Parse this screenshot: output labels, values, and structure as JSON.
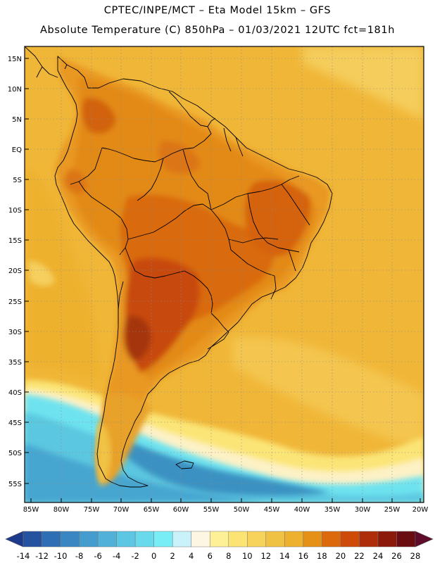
{
  "header": {
    "line1": "CPTEC/INPE/MCT –  Eta Model 15km – GFS",
    "line2": "Absolute Temperature (C) 850hPa – 01/03/2021 12UTC fct=181h"
  },
  "map": {
    "lat_labels": [
      "15N",
      "10N",
      "5N",
      "EQ",
      "5S",
      "10S",
      "15S",
      "20S",
      "25S",
      "30S",
      "35S",
      "40S",
      "45S",
      "50S",
      "55S"
    ],
    "lon_labels": [
      "85W",
      "80W",
      "75W",
      "70W",
      "65W",
      "60W",
      "55W",
      "50W",
      "45W",
      "40W",
      "35W",
      "30W",
      "25W",
      "20W"
    ],
    "lat_range": [
      -58,
      17
    ],
    "lon_range": [
      -86,
      -20
    ],
    "grid": "dotted"
  },
  "colorbar": {
    "labels": [
      "-14",
      "-12",
      "-10",
      "-8",
      "-6",
      "-4",
      "-2",
      "0",
      "2",
      "4",
      "6",
      "8",
      "10",
      "12",
      "14",
      "16",
      "18",
      "20",
      "22",
      "24",
      "26",
      "28"
    ],
    "colors": [
      "#1d3b8a",
      "#2553a0",
      "#2e6eb5",
      "#3a86c2",
      "#459cce",
      "#51b1d9",
      "#5cc6e3",
      "#6ad9ec",
      "#78edf5",
      "#caf2fb",
      "#fdf6e2",
      "#fdf097",
      "#fbe374",
      "#f7d35c",
      "#f0c244",
      "#edb12e",
      "#e59017",
      "#dc6a0c",
      "#cd4a08",
      "#ad2e08",
      "#8c1a0b",
      "#6a0d10",
      "#5e0c2a"
    ]
  },
  "colors": {
    "ocean_warm": "#f0b637",
    "land_hot": "#e38a18",
    "land_core": "#cc4e0a",
    "hot_spot": "#9e3108",
    "cold_ocean": "#5fd0e3",
    "cold_deep": "#3e94c4",
    "border": "#000000"
  }
}
